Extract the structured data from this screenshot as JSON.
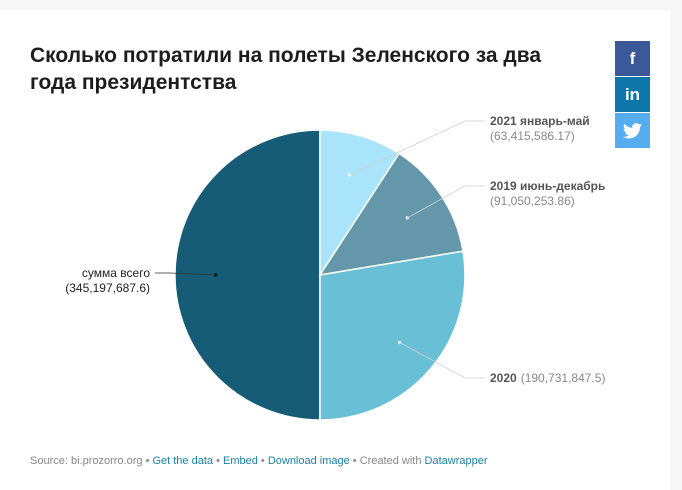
{
  "title": "Сколько потратили на полеты Зеленского за два года президентства",
  "social": {
    "facebook": "f",
    "linkedin": "in"
  },
  "chart_data": {
    "type": "pie",
    "slices": [
      {
        "label": "сумма всего",
        "value": 345197687.6,
        "value_text": "(345,197,687.6)",
        "color": "#165c77"
      },
      {
        "label": "2021 январь-май",
        "value": 63415586.17,
        "value_text": "(63,415,586.17)",
        "color": "#a9e4fb"
      },
      {
        "label": "2019 июнь-декабрь",
        "value": 91050253.86,
        "value_text": "(91,050,253.86)",
        "color": "#6597ab"
      },
      {
        "label": "2020",
        "value": 190731847.5,
        "value_text": "(190,731,847.5)",
        "color": "#68bfd6"
      }
    ]
  },
  "footer": {
    "source": "Source: bi.prozorro.org",
    "sep": " • ",
    "get_data": "Get the data",
    "embed": "Embed",
    "download": "Download image",
    "created": "Created with",
    "tool": "Datawrapper"
  }
}
